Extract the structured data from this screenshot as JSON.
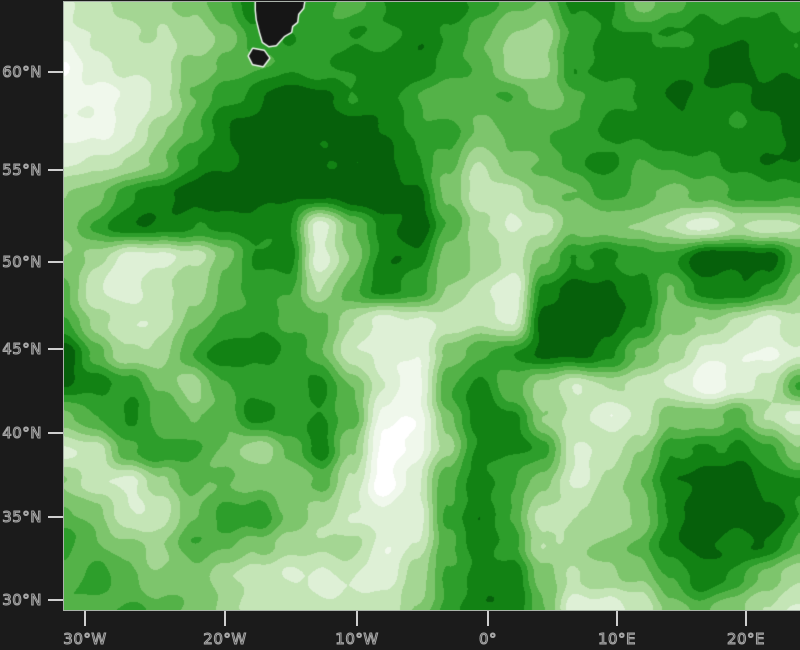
{
  "figure": {
    "background_color": "#1b1b1b",
    "tick_color": "#cfcfcf",
    "spine_color": "#aab2aa",
    "label_fill_color": "#262626",
    "label_outline_color": "#a8a8a8"
  },
  "chart_data": {
    "type": "heatmap",
    "description": "Filled contour map of a scalar field over the North Atlantic and Europe, green shading from near-white (low) to dark green (high), with a black masked landmass patch near the top edge around 20W,62N",
    "legend": "none",
    "grid_on": false,
    "x_axis": {
      "ticks": [
        {
          "label": "30°W",
          "px": 85
        },
        {
          "label": "20°W",
          "px": 225
        },
        {
          "label": "10°W",
          "px": 357
        },
        {
          "label": "0°",
          "px": 488
        },
        {
          "label": "10°E",
          "px": 617
        },
        {
          "label": "20°E",
          "px": 746
        }
      ]
    },
    "y_axis": {
      "ticks": [
        {
          "label": "60°N",
          "px": 72
        },
        {
          "label": "55°N",
          "px": 170
        },
        {
          "label": "50°N",
          "px": 262
        },
        {
          "label": "45°N",
          "px": 349
        },
        {
          "label": "40°N",
          "px": 433
        },
        {
          "label": "35°N",
          "px": 517
        },
        {
          "label": "30°N",
          "px": 600
        }
      ]
    },
    "palette_light_to_dark": [
      "#ffffff",
      "#f0f8ec",
      "#def0d6",
      "#c4e5b6",
      "#a4d693",
      "#7dc56c",
      "#54b248",
      "#2d9e2b",
      "#128214",
      "#06600b"
    ],
    "grid_levels_0to9": [
      "234456887678876588567777",
      "233345787778765478778888",
      "123356677888764478888988",
      "112357899887666567898899",
      "112468999987756678888889",
      "234578999998635678777888",
      "457899999999533567656777",
      "578888882589643355432334",
      "542235782588543578779996",
      "632346774687432899858875",
      "743357766422332999854323",
      "964468876322567998642212",
      "887546778521686434321237",
      "578656878611588532355632",
      "236775468401488733478875",
      "532466556302687524589988",
      "653357754322786334589997",
      "765466544423687445689886",
      "676554322324788534578753",
      "667654333335788622356532"
    ],
    "mask_color": "#161616",
    "mask_outline_color": "#eef5ee",
    "mask_polygons": [
      [
        [
          192,
          0
        ],
        [
          240,
          0
        ],
        [
          239,
          6
        ],
        [
          234,
          12
        ],
        [
          233,
          20
        ],
        [
          228,
          24
        ],
        [
          227,
          30
        ],
        [
          220,
          34
        ],
        [
          212,
          43
        ],
        [
          205,
          44
        ],
        [
          199,
          40
        ],
        [
          196,
          30
        ],
        [
          193,
          18
        ],
        [
          192,
          8
        ]
      ],
      [
        [
          189,
          47
        ],
        [
          200,
          49
        ],
        [
          205,
          56
        ],
        [
          199,
          64
        ],
        [
          189,
          62
        ],
        [
          185,
          54
        ]
      ]
    ]
  }
}
